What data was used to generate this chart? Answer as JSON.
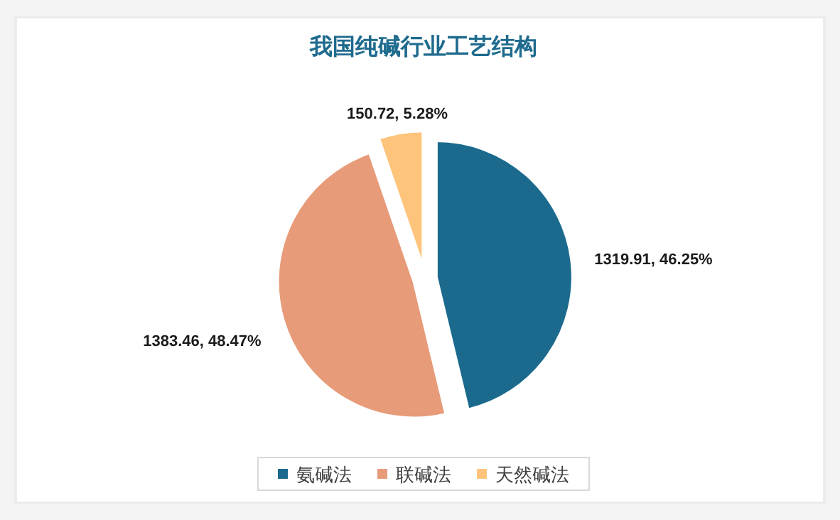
{
  "chart_data": {
    "type": "pie",
    "title": "我国纯碱行业工艺结构",
    "categories": [
      "氨碱法",
      "联碱法",
      "天然碱法"
    ],
    "values": [
      1319.91,
      1383.46,
      150.72
    ],
    "value_labels": [
      "1319.91, 46.25%",
      "1383.46, 48.47%",
      "150.72, 5.28%"
    ],
    "colors": [
      "#1b6a8e",
      "#e79b79",
      "#fec47b"
    ],
    "legend": "bottom"
  }
}
